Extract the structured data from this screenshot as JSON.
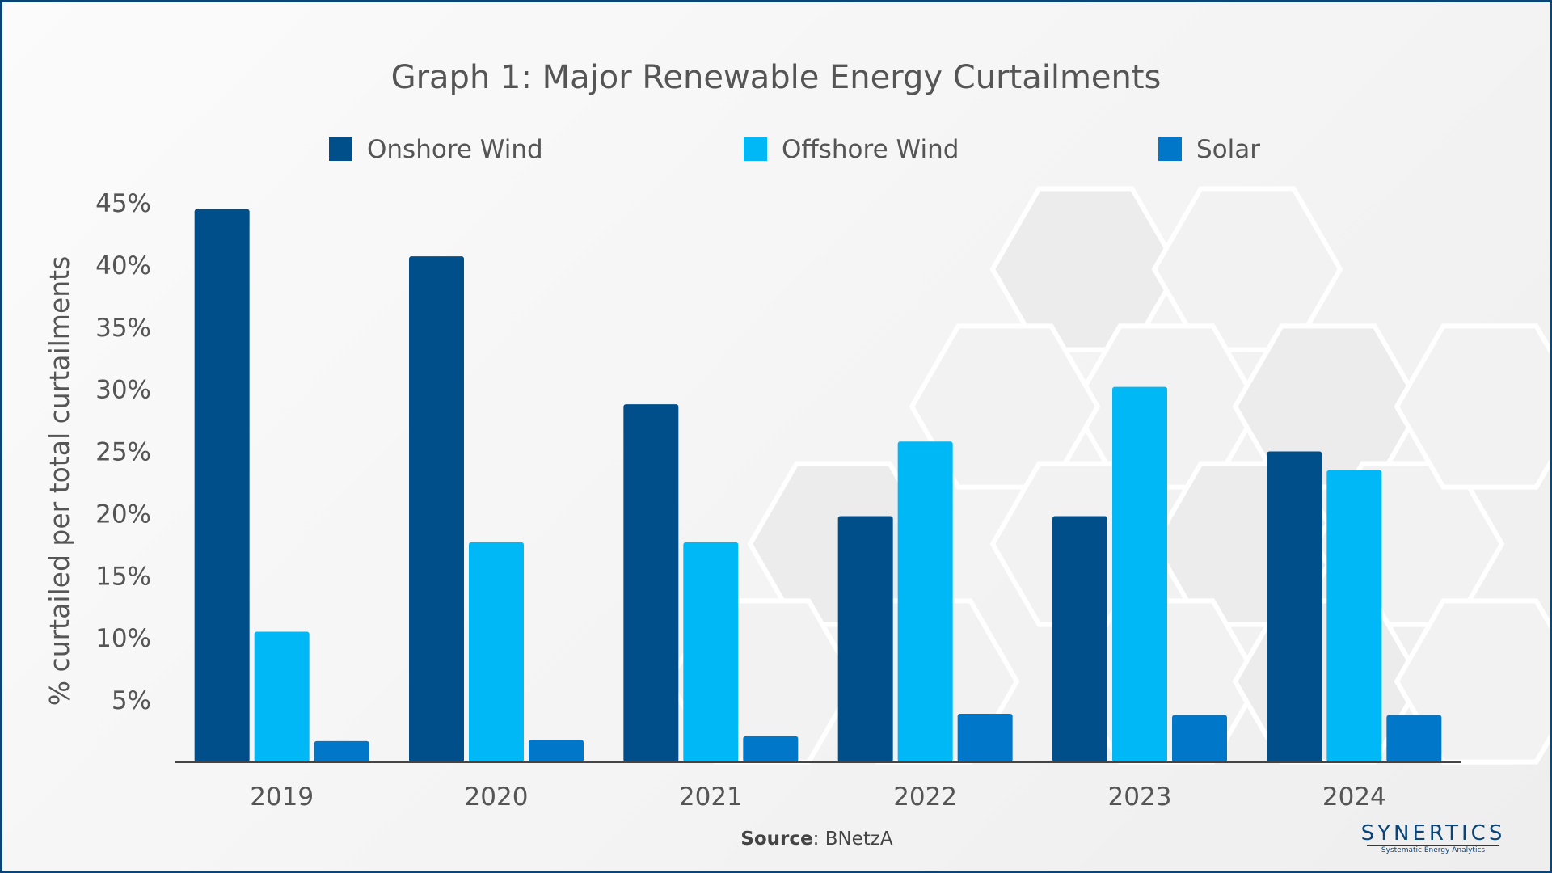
{
  "chart_data": {
    "type": "bar",
    "title": "Graph 1: Major Renewable Energy Curtailments",
    "ylabel": "% curtailed per total curtailments",
    "xlabel": "",
    "categories": [
      "2019",
      "2020",
      "2021",
      "2022",
      "2023",
      "2024"
    ],
    "series": [
      {
        "name": "Onshore Wind",
        "color": "#004f8a",
        "values": [
          44.5,
          40.7,
          28.8,
          19.8,
          19.8,
          25.0
        ]
      },
      {
        "name": "Offshore Wind",
        "color": "#00b8f5",
        "values": [
          10.5,
          17.7,
          17.7,
          25.8,
          30.2,
          23.5
        ]
      },
      {
        "name": "Solar",
        "color": "#0077c8",
        "values": [
          1.7,
          1.8,
          2.1,
          3.9,
          3.8,
          3.8
        ]
      }
    ],
    "ylim": [
      0,
      45
    ],
    "yticks": [
      "5%",
      "10%",
      "15%",
      "20%",
      "25%",
      "30%",
      "35%",
      "40%",
      "45%"
    ],
    "ytick_values": [
      5,
      10,
      15,
      20,
      25,
      30,
      35,
      40,
      45
    ],
    "legend_position": "top",
    "grid": false
  },
  "source": {
    "label": "Source",
    "text": ": BNetzA"
  },
  "brand": {
    "name": "SYNERTICS",
    "tagline": "Systematic Energy Analytics"
  },
  "colors": {
    "frame": "#0b4476",
    "axis": "#444444",
    "text": "#555555"
  }
}
